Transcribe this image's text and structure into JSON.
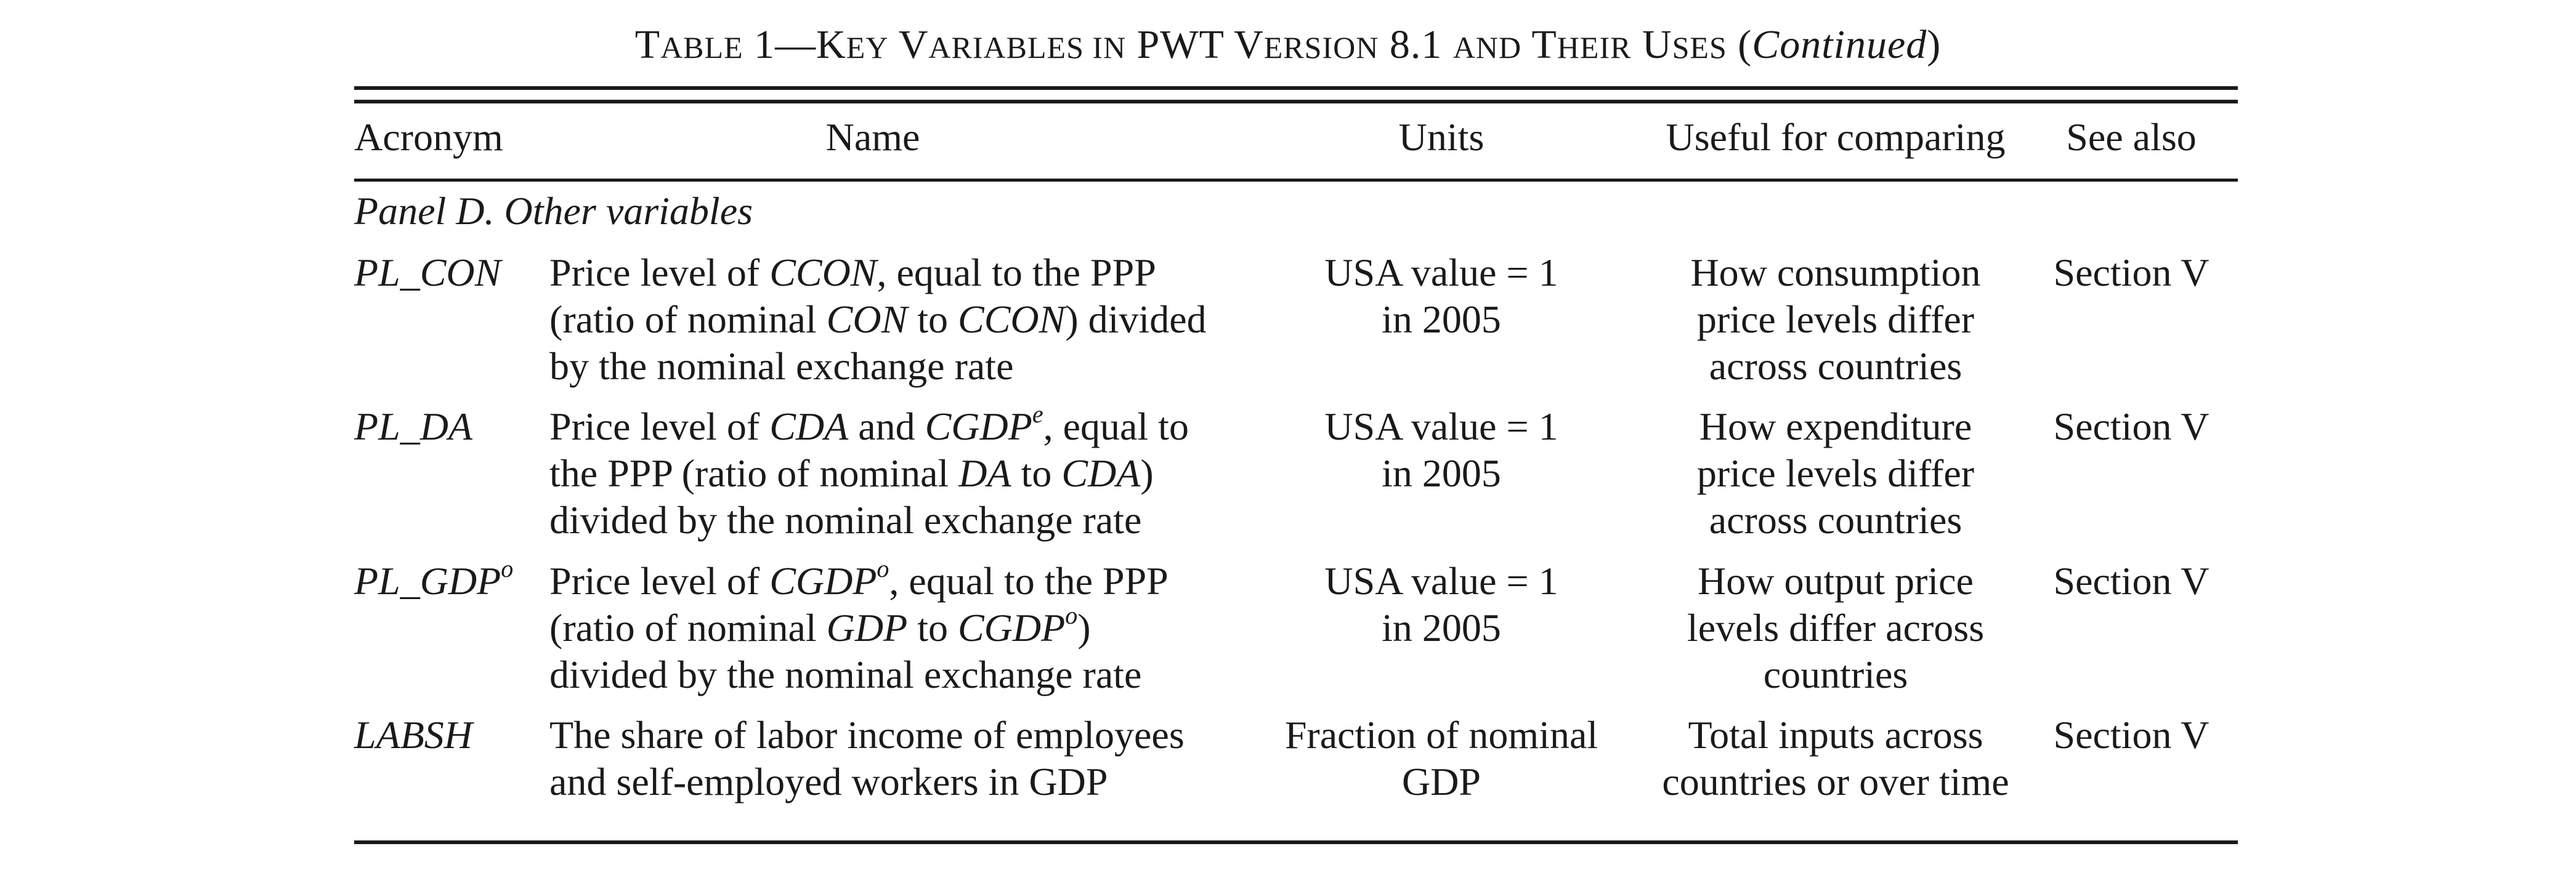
{
  "title": {
    "t_cap": "T",
    "t_rest": "ABLE",
    "t_num": "1—",
    "k_cap": "K",
    "k_rest": "EY",
    "v_cap": "V",
    "v_rest": "ARIABLES IN",
    "pwt": "PWT",
    "v2_cap": "V",
    "v2_rest": "ERSION",
    "ver": "8.1",
    "and": "AND",
    "th_cap": "T",
    "th_rest": "HEIR",
    "u_cap": "U",
    "u_rest": "SES",
    "paren_open": "(",
    "continued": "Continued",
    "paren_close": ")"
  },
  "header": {
    "acronym": "Acronym",
    "name": "Name",
    "units": "Units",
    "useful": "Useful for comparing",
    "see_also": "See also"
  },
  "panel_label": "Panel D. Other variables",
  "rows": [
    {
      "acronym": "PL_CON",
      "name_lines": {
        "l1a": "Price level of ",
        "l1b": "CCON",
        "l1c": ", equal to the PPP",
        "l2a": "(ratio of nominal ",
        "l2b": "CON",
        "l2c": " to ",
        "l2d": "CCON",
        "l2e": ") divided",
        "l3": "by the nominal exchange rate"
      },
      "units_lines": [
        "USA value = 1",
        "in 2005"
      ],
      "useful_lines": [
        "How consumption",
        "price levels differ",
        "across countries"
      ],
      "see_also": "Section V"
    },
    {
      "acronym": "PL_DA",
      "name_lines": {
        "l1a": "Price level of ",
        "l1b": "CDA",
        "l1c": " and ",
        "l1d": "CGDP",
        "l1sup": "e",
        "l1e": ", equal to",
        "l2a": "the PPP (ratio of nominal ",
        "l2b": "DA",
        "l2c": " to ",
        "l2d": "CDA",
        "l2e": ")",
        "l3": "divided by the nominal exchange rate"
      },
      "units_lines": [
        "USA value = 1",
        "in 2005"
      ],
      "useful_lines": [
        "How expenditure",
        "price levels differ",
        "across countries"
      ],
      "see_also": "Section V"
    },
    {
      "acronym": "PL_GDP",
      "acronym_sup": "o",
      "name_lines": {
        "l1a": "Price level of ",
        "l1b": "CGDP",
        "l1sup": "o",
        "l1c": ", equal to the PPP",
        "l2a": "(ratio of nominal ",
        "l2b": "GDP",
        "l2c": " to ",
        "l2d": "CGDP",
        "l2sup": "o",
        "l2e": ")",
        "l3": "divided by the nominal exchange rate"
      },
      "units_lines": [
        "USA value = 1",
        "in 2005"
      ],
      "useful_lines": [
        "How output price",
        "levels differ across",
        "countries"
      ],
      "see_also": "Section V"
    },
    {
      "acronym": "LABSH",
      "name_lines": {
        "l1": "The share of labor income of employees",
        "l2": "and self-employed workers in GDP"
      },
      "units_lines": [
        "Fraction of nominal",
        "GDP"
      ],
      "useful_lines": [
        "Total inputs across",
        "countries or over time"
      ],
      "see_also": "Section V"
    }
  ]
}
